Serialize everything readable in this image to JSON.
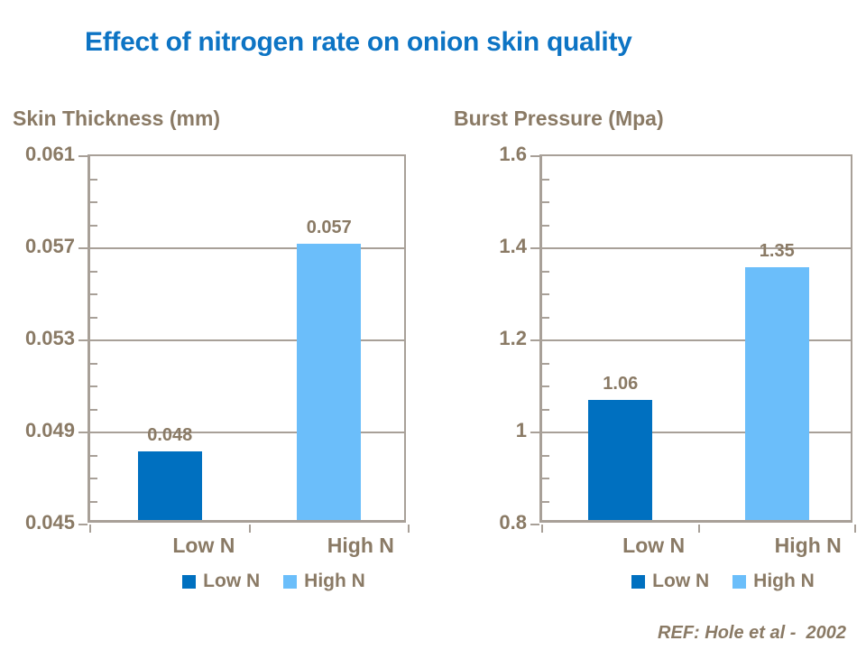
{
  "slide": {
    "title": "Effect of nitrogen rate on onion skin quality",
    "ref": "REF: Hole et al -  2002"
  },
  "colors": {
    "title_blue": "#0d74c4",
    "text_taupe": "#8a7a65",
    "axis_color": "#a8a098",
    "low_n_blue": "#0070c0",
    "high_n_blue": "#6bbefa"
  },
  "chart_data": [
    {
      "type": "bar",
      "title": "Skin Thickness (mm)",
      "categories": [
        "Low N",
        "High N"
      ],
      "values": [
        0.048,
        0.057
      ],
      "data_labels": [
        "0.048",
        "0.057"
      ],
      "bar_colors": [
        "#0070c0",
        "#6bbefa"
      ],
      "ylim": [
        0.045,
        0.061
      ],
      "ytick_labels": [
        "0.061",
        "0.057",
        "0.053",
        "0.049",
        "0.045"
      ],
      "ytick_step": 0.004,
      "minor_tick_step": 0.001,
      "grid": true,
      "legend": [
        "Low N",
        "High N"
      ],
      "legend_position": "bottom"
    },
    {
      "type": "bar",
      "title": "Burst Pressure (Mpa)",
      "categories": [
        "Low N",
        "High N"
      ],
      "values": [
        1.06,
        1.35
      ],
      "data_labels": [
        "1.06",
        "1.35"
      ],
      "bar_colors": [
        "#0070c0",
        "#6bbefa"
      ],
      "ylim": [
        0.8,
        1.6
      ],
      "ytick_labels": [
        "1.6",
        "1.4",
        "1.2",
        "1",
        "0.8"
      ],
      "ytick_step": 0.2,
      "minor_tick_step": 0.05,
      "grid": true,
      "legend": [
        "Low N",
        "High N"
      ],
      "legend_position": "bottom"
    }
  ]
}
